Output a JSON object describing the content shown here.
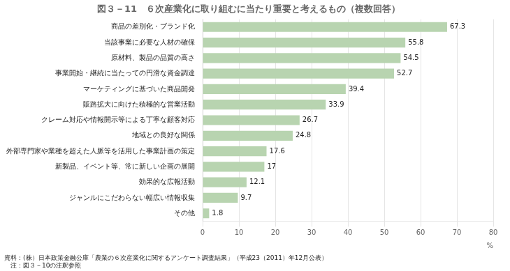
{
  "chart_data": {
    "type": "bar",
    "orientation": "horizontal",
    "title": "図３－11　６次産業化に取り組むに当たり重要と考えるもの（複数回答）",
    "categories": [
      "商品の差別化・ブランド化",
      "当該事業に必要な人材の確保",
      "原材料、製品の品質の高さ",
      "事業開始・継続に当たっての円滑な資金調達",
      "マーケティングに基づいた商品開発",
      "販路拡大に向けた積極的な営業活動",
      "クレーム対応や情報開示等による丁寧な顧客対応",
      "地域との良好な関係",
      "外部専門家や業種を超えた人脈等を活用した事業計画の策定",
      "新製品、イベント等、常に新しい企画の展開",
      "効果的な広報活動",
      "ジャンルにこだわらない幅広い情報収集",
      "その他"
    ],
    "values": [
      67.3,
      55.8,
      54.5,
      52.7,
      39.4,
      33.9,
      26.7,
      24.8,
      17.6,
      17.0,
      12.1,
      9.7,
      1.8
    ],
    "color": "#b8d4b0",
    "xlabel": "%",
    "xlim": [
      0,
      80
    ],
    "xticks": [
      0,
      10,
      20,
      30,
      40,
      50,
      60,
      70,
      80
    ],
    "grid": true,
    "data_labels": true,
    "annotations": [
      "資料：(株）日本政策金融公庫「農業の６次産業化に関するアンケート調査結果」（平成23（2011）年12月公表）",
      "　注：図３－10の注釈参照"
    ]
  }
}
